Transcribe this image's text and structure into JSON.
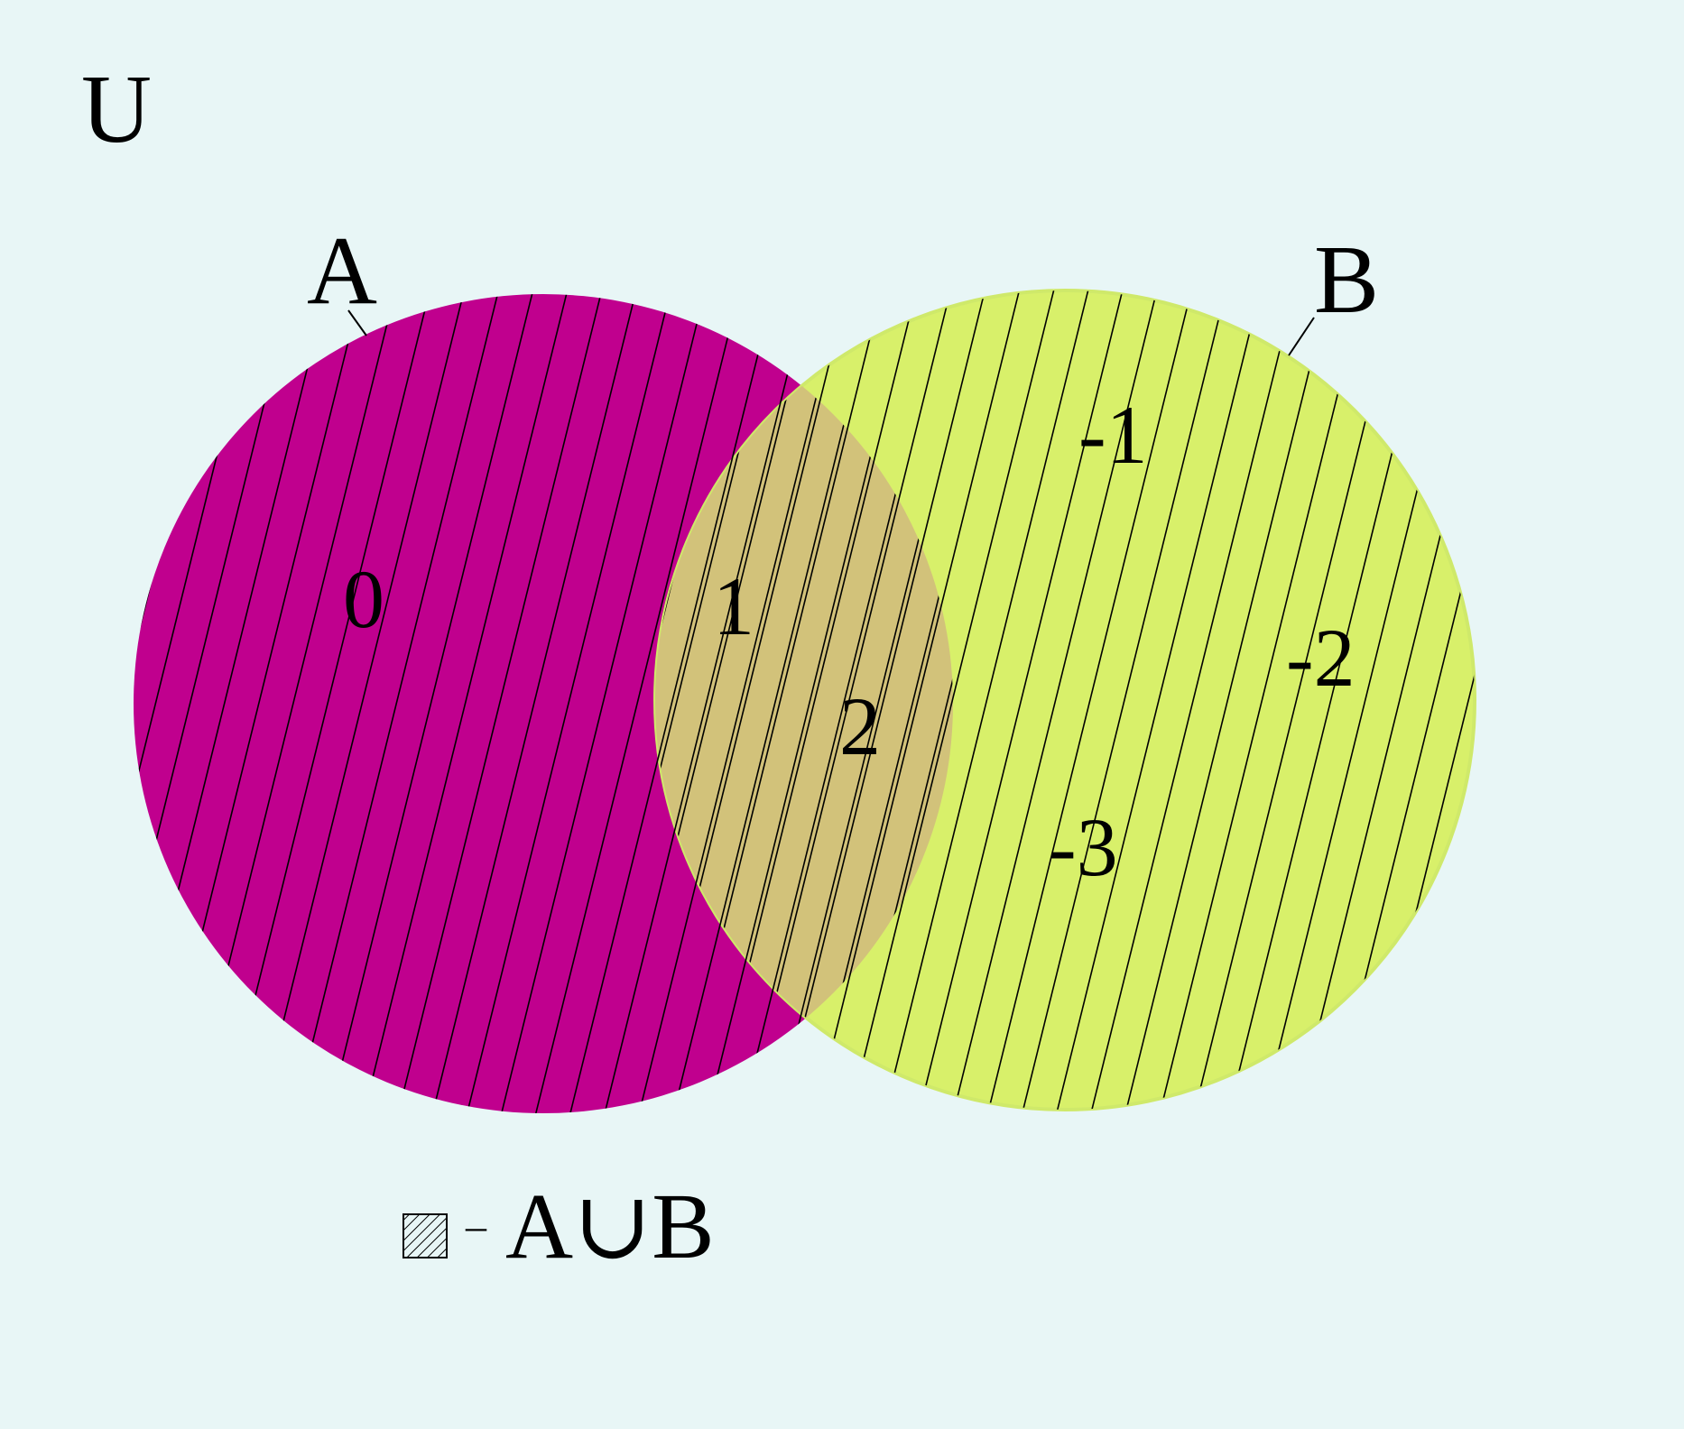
{
  "universe": {
    "label": "U"
  },
  "sets": {
    "a": {
      "label": "A",
      "color": "#c0008e"
    },
    "b": {
      "label": "B",
      "color": "#d8f06a"
    }
  },
  "overlap_color": "#d2c27a",
  "background_color": "#e8f6f6",
  "hatch_color": "#000000",
  "elements": {
    "a_only": [
      "0"
    ],
    "intersection": [
      "1",
      "2"
    ],
    "b_only": [
      "-1",
      "-2",
      "-3"
    ]
  },
  "legend": {
    "separator": "–",
    "expression": "A∪B",
    "swatch_icon": "hatched-square-icon"
  }
}
